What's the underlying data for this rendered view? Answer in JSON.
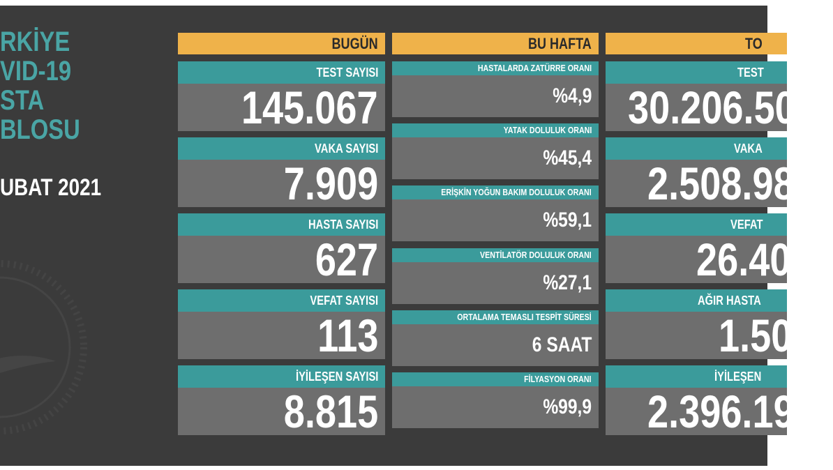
{
  "title_lines": [
    "RKİYE",
    "VID-19",
    "STA",
    "BLOSU"
  ],
  "date": "UBAT 2021",
  "columns": [
    {
      "header": "BUGÜN",
      "cards": [
        {
          "label": "TEST SAYISI",
          "value": "145.067"
        },
        {
          "label": "VAKA SAYISI",
          "value": "7.909"
        },
        {
          "label": "HASTA SAYISI",
          "value": "627"
        },
        {
          "label": "VEFAT SAYISI",
          "value": "113"
        },
        {
          "label": "İYİLEŞEN SAYISI",
          "value": "8.815"
        }
      ]
    },
    {
      "header": "BU HAFTA",
      "cards": [
        {
          "label": "HASTALARDA ZATÜRRE ORANI",
          "value": "%4,9"
        },
        {
          "label": "YATAK DOLULUK ORANI",
          "value": "%45,4"
        },
        {
          "label": "ERİŞKİN YOĞUN BAKIM DOLULUK ORANI",
          "value": "%59,1"
        },
        {
          "label": "VENTİLATÖR DOLULUK ORANI",
          "value": "%27,1"
        },
        {
          "label": "ORTALAMA TEMASLI TESPİT SÜRESİ",
          "value": "6 SAAT"
        },
        {
          "label": "FİLYASYON ORANI",
          "value": "%99,9"
        }
      ]
    },
    {
      "header": "TO",
      "cards": [
        {
          "label": "TEST",
          "value": "30.206.50"
        },
        {
          "label": "VAKA",
          "value": "2.508.98"
        },
        {
          "label": "VEFAT",
          "value": "26.40"
        },
        {
          "label": "AĞIR HASTA",
          "value": "1.50"
        },
        {
          "label": "İYİLEŞEN",
          "value": "2.396.19"
        }
      ]
    }
  ]
}
